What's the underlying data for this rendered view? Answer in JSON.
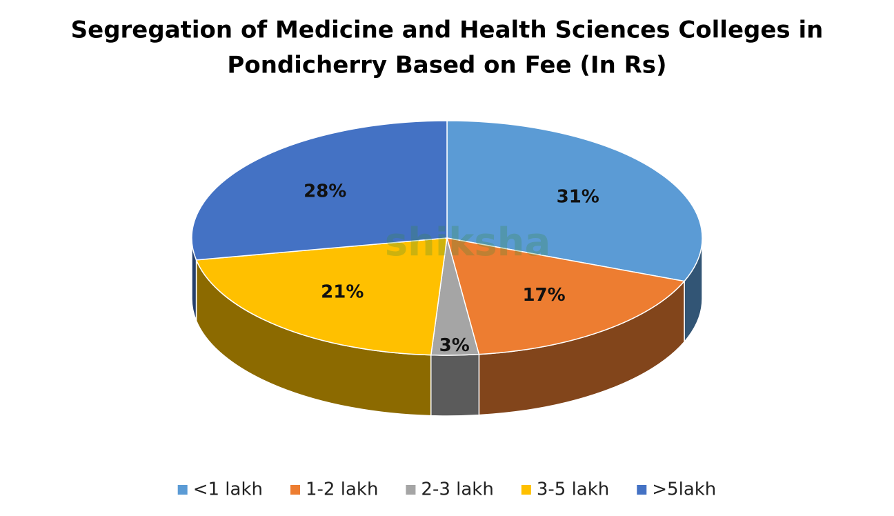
{
  "chart_data": {
    "type": "pie3d",
    "title": [
      "Segregation of Medicine and Health Sciences Colleges in",
      "Pondicherry Based on Fee (In Rs)"
    ],
    "categories": [
      "<1 lakh",
      "1-2 lakh",
      "2-3 lakh",
      "3-5 lakh",
      ">5lakh"
    ],
    "values": [
      31,
      17,
      3,
      21,
      28
    ],
    "value_labels": [
      "31%",
      "17%",
      "3%",
      "21%",
      "28%"
    ],
    "colors": [
      "#5b9bd5",
      "#ed7d31",
      "#a5a5a5",
      "#ffc000",
      "#4472c4"
    ],
    "legend": "bottom",
    "watermark": "shiksha"
  }
}
